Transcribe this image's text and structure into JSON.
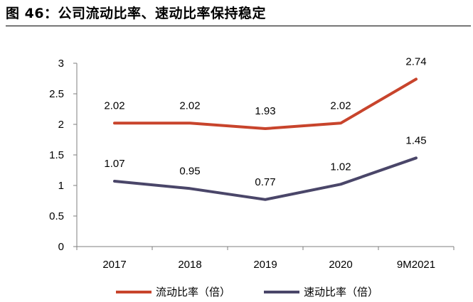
{
  "figure": {
    "title": "图 46：公司流动比率、速动比率保持稳定"
  },
  "colors": {
    "current_ratio": "#C8442C",
    "quick_ratio": "#4A4669",
    "axis": "#7f7f7f"
  },
  "chart_data": {
    "type": "line",
    "title": "",
    "xlabel": "",
    "ylabel": "",
    "categories": [
      "2017",
      "2018",
      "2019",
      "2020",
      "9M2021"
    ],
    "ylim": [
      0,
      3
    ],
    "yticks": [
      "0",
      "0.5",
      "1",
      "1.5",
      "2",
      "2.5",
      "3"
    ],
    "grid": false,
    "legend_position": "bottom",
    "series": [
      {
        "name": "流动比率（倍）",
        "values": [
          2.02,
          2.02,
          1.93,
          2.02,
          2.74
        ],
        "labels": [
          "2.02",
          "2.02",
          "1.93",
          "2.02",
          "2.74"
        ]
      },
      {
        "name": "速动比率（倍）",
        "values": [
          1.07,
          0.95,
          0.77,
          1.02,
          1.45
        ],
        "labels": [
          "1.07",
          "0.95",
          "0.77",
          "1.02",
          "1.45"
        ]
      }
    ]
  }
}
